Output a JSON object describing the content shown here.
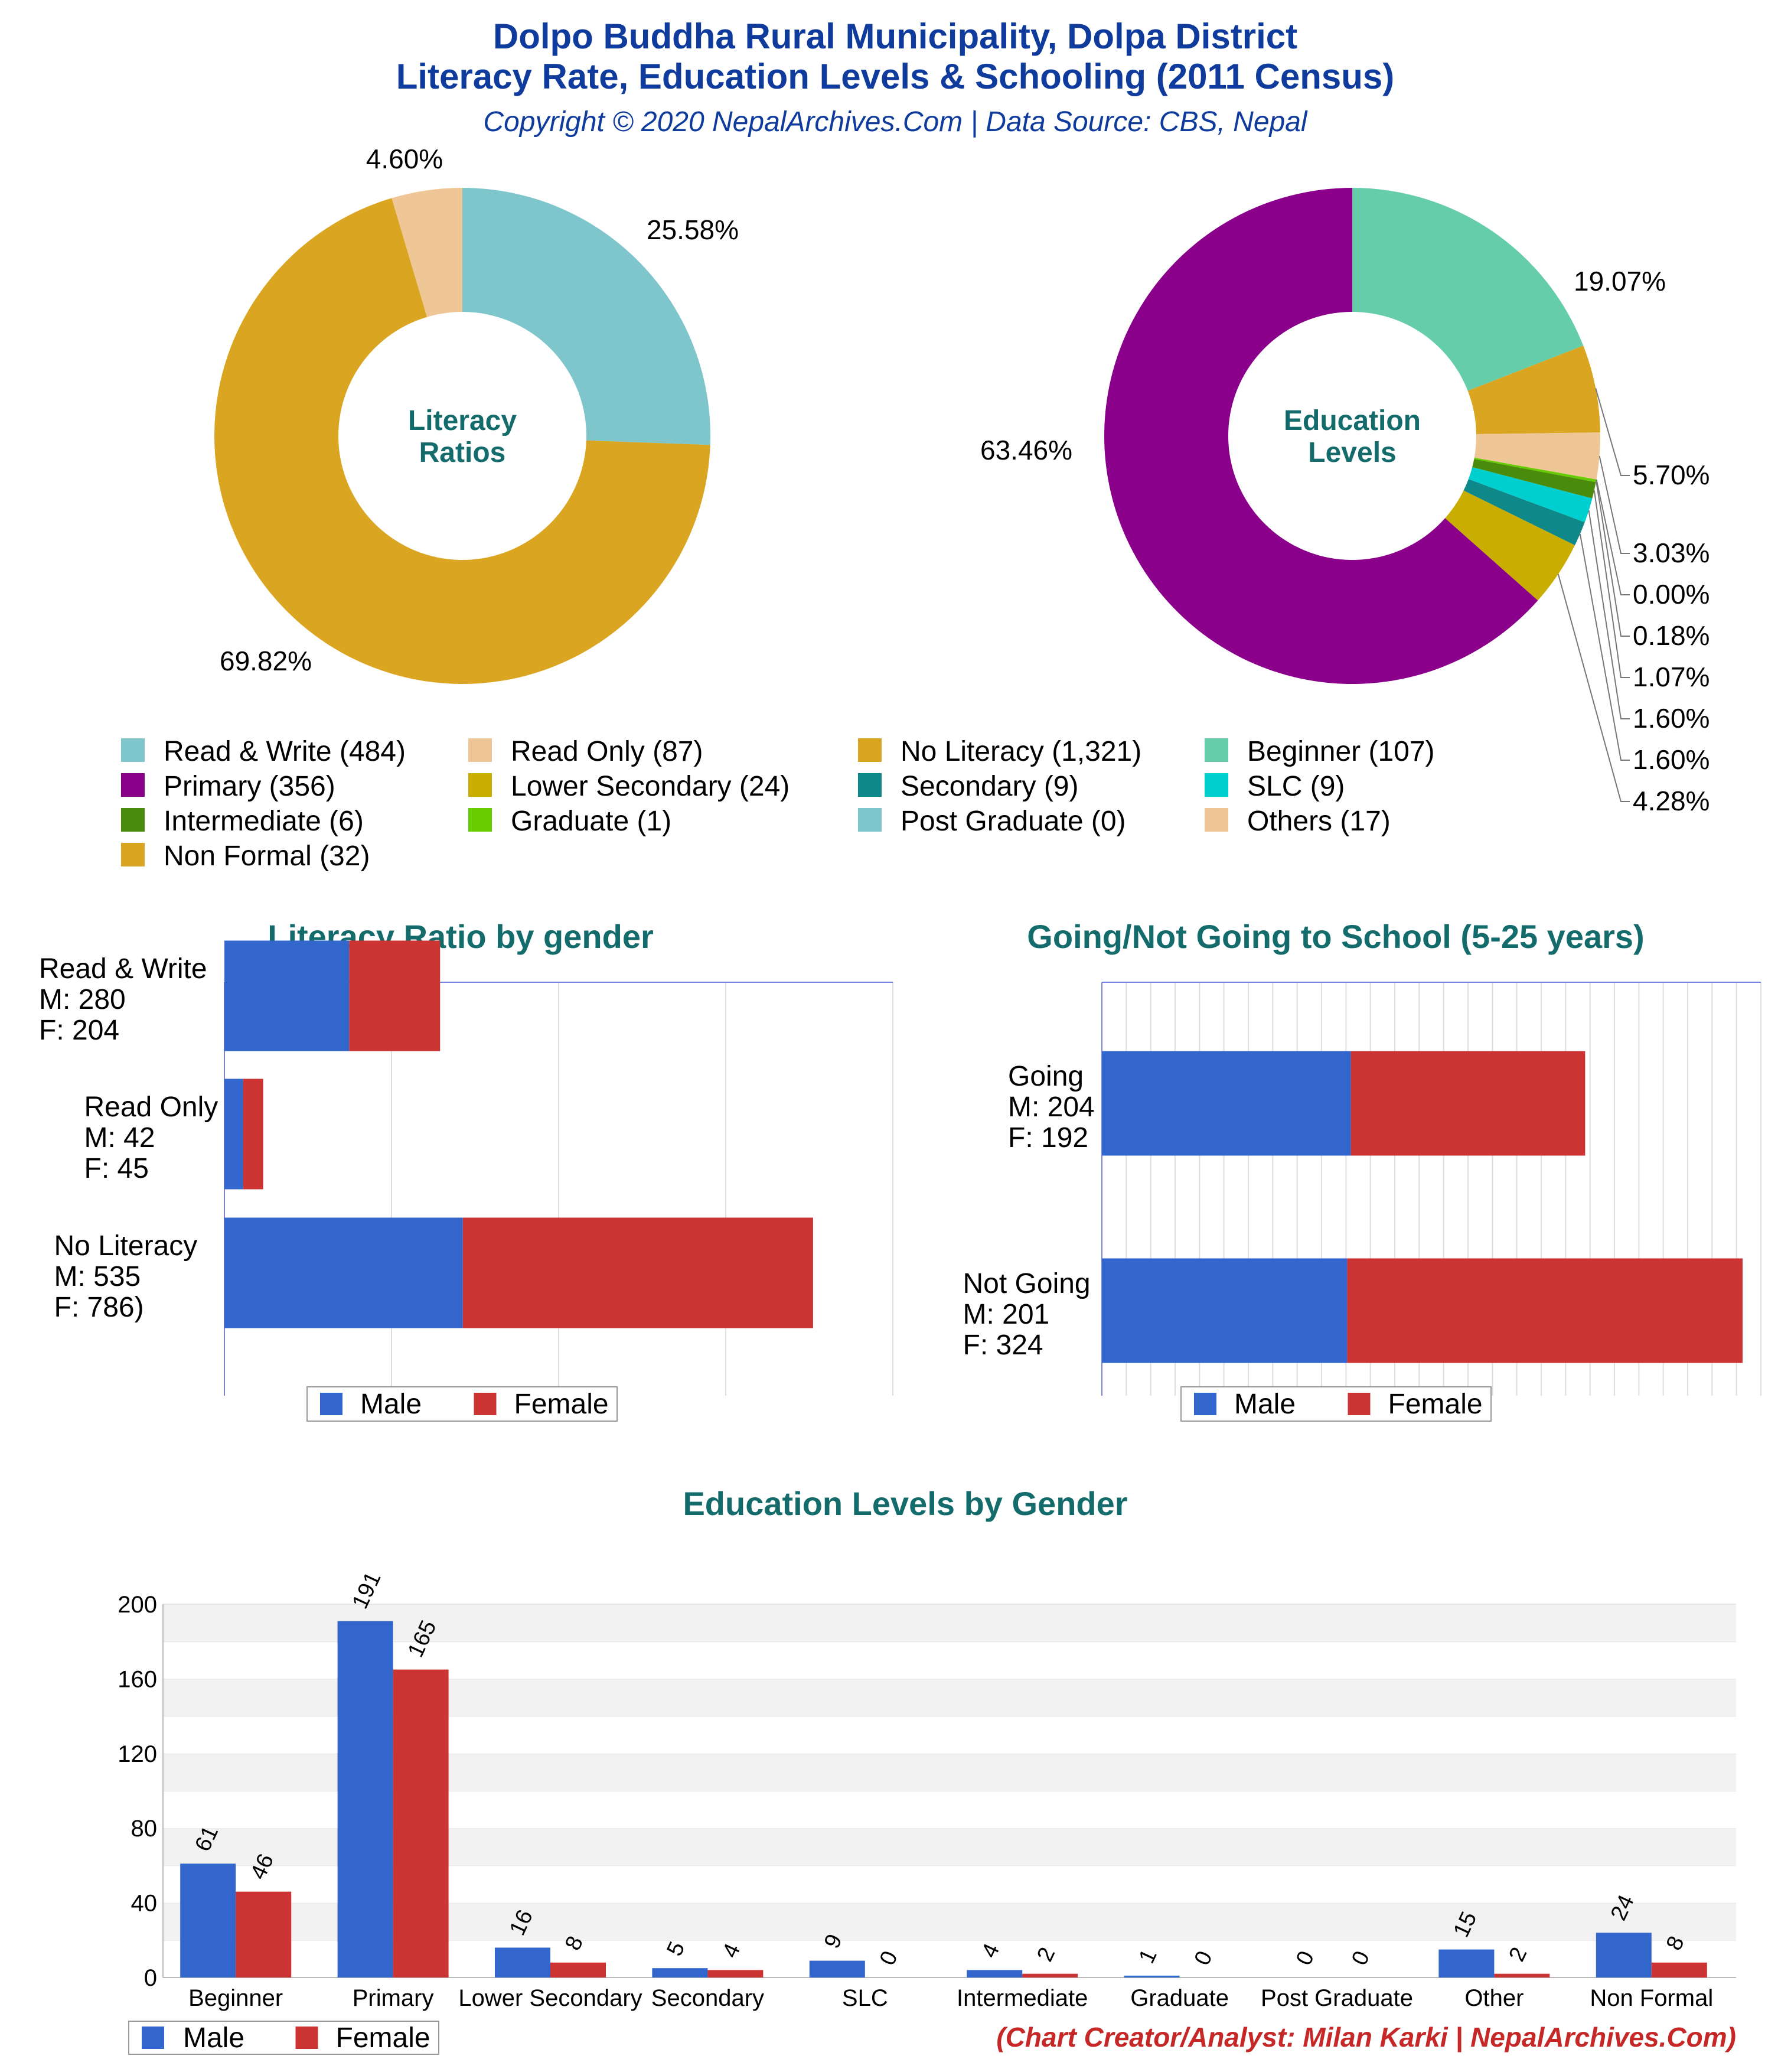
{
  "header": {
    "title_line1": "Dolpo Buddha Rural Municipality, Dolpa District",
    "title_line2": "Literacy Rate, Education Levels & Schooling (2011 Census)",
    "subtitle": "Copyright © 2020 NepalArchives.Com | Data Source: CBS, Nepal"
  },
  "credit": "(Chart Creator/Analyst: Milan Karki | NepalArchives.Com)",
  "legend_main": [
    {
      "label": "Read & Write (484)",
      "color": "#7ec6cc"
    },
    {
      "label": "Read Only (87)",
      "color": "#efc796"
    },
    {
      "label": "No Literacy (1,321)",
      "color": "#daa520"
    },
    {
      "label": "Beginner (107)",
      "color": "#66cdaa"
    },
    {
      "label": "Primary (356)",
      "color": "#8b008b"
    },
    {
      "label": "Lower Secondary (24)",
      "color": "#c9ad00"
    },
    {
      "label": "Secondary (9)",
      "color": "#0e8888"
    },
    {
      "label": "SLC (9)",
      "color": "#00cfcf"
    },
    {
      "label": "Intermediate (6)",
      "color": "#4b8b0b"
    },
    {
      "label": "Graduate (1)",
      "color": "#66cc00"
    },
    {
      "label": "Post Graduate (0)",
      "color": "#7ec6cc"
    },
    {
      "label": "Others (17)",
      "color": "#efc796"
    },
    {
      "label": "Non Formal (32)",
      "color": "#daa520"
    }
  ],
  "gender_legend": {
    "male": "Male",
    "female": "Female",
    "male_color": "#3366cc",
    "female_color": "#cc3333"
  },
  "chart_data": [
    {
      "type": "pie",
      "title": "Literacy Ratios",
      "slices": [
        {
          "name": "Read & Write",
          "value": 484,
          "pct": "25.58%",
          "color": "#7ec6cc"
        },
        {
          "name": "No Literacy",
          "value": 1321,
          "pct": "69.82%",
          "color": "#daa520"
        },
        {
          "name": "Read Only",
          "value": 87,
          "pct": "4.60%",
          "color": "#efc796"
        }
      ]
    },
    {
      "type": "pie",
      "title": "Education Levels",
      "slices": [
        {
          "name": "Beginner",
          "value": 107,
          "pct": "19.07%",
          "color": "#66cdaa"
        },
        {
          "name": "Non Formal",
          "value": 32,
          "pct": "5.70%",
          "color": "#daa520"
        },
        {
          "name": "Others",
          "value": 17,
          "pct": "3.03%",
          "color": "#efc796"
        },
        {
          "name": "Post Graduate",
          "value": 0,
          "pct": "0.00%",
          "color": "#7ec6cc"
        },
        {
          "name": "Graduate",
          "value": 1,
          "pct": "0.18%",
          "color": "#66cc00"
        },
        {
          "name": "Intermediate",
          "value": 6,
          "pct": "1.07%",
          "color": "#4b8b0b"
        },
        {
          "name": "SLC",
          "value": 9,
          "pct": "1.60%",
          "color": "#00cfcf"
        },
        {
          "name": "Secondary",
          "value": 9,
          "pct": "1.60%",
          "color": "#0e8888"
        },
        {
          "name": "Lower Secondary",
          "value": 24,
          "pct": "4.28%",
          "color": "#c9ad00"
        },
        {
          "name": "Primary",
          "value": 356,
          "pct": "63.46%",
          "color": "#8b008b"
        }
      ]
    },
    {
      "type": "bar",
      "orientation": "horizontal",
      "stacked": true,
      "title": "Literacy Ratio by gender",
      "categories": [
        {
          "line1": "Read & Write",
          "line2": "M: 280",
          "line3": "F: 204"
        },
        {
          "line1": "Read Only",
          "line2": "M: 42",
          "line3": "F: 45"
        },
        {
          "line1": "No Literacy",
          "line2": "M: 535",
          "line3": "F: 786)"
        }
      ],
      "series": [
        {
          "name": "Male",
          "values": [
            280,
            42,
            535
          ]
        },
        {
          "name": "Female",
          "values": [
            204,
            45,
            786
          ]
        }
      ],
      "xlim": [
        0,
        1500
      ],
      "grid": true
    },
    {
      "type": "bar",
      "orientation": "horizontal",
      "stacked": true,
      "title": "Going/Not Going to School (5-25 years)",
      "categories": [
        {
          "line1": "Going",
          "line2": "M: 204",
          "line3": "F: 192"
        },
        {
          "line1": "Not Going",
          "line2": "M: 201",
          "line3": "F: 324"
        }
      ],
      "series": [
        {
          "name": "Male",
          "values": [
            204,
            201
          ]
        },
        {
          "name": "Female",
          "values": [
            192,
            324
          ]
        }
      ],
      "xlim": [
        0,
        540
      ],
      "grid": true
    },
    {
      "type": "bar",
      "title": "Education Levels by Gender",
      "categories": [
        "Beginner",
        "Primary",
        "Lower Secondary",
        "Secondary",
        "SLC",
        "Intermediate",
        "Graduate",
        "Post Graduate",
        "Other",
        "Non Formal"
      ],
      "series": [
        {
          "name": "Male",
          "values": [
            61,
            191,
            16,
            5,
            9,
            4,
            1,
            0,
            15,
            24
          ]
        },
        {
          "name": "Female",
          "values": [
            46,
            165,
            8,
            4,
            0,
            2,
            0,
            0,
            2,
            8
          ]
        }
      ],
      "ylim": [
        0,
        200
      ],
      "yticks": [
        0,
        40,
        80,
        120,
        160,
        200
      ],
      "grid": true
    }
  ]
}
